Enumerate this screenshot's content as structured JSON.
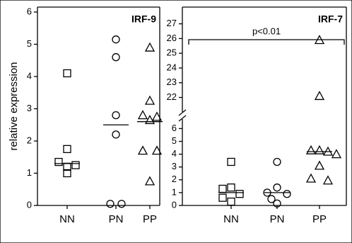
{
  "chart_data": [
    {
      "type": "dot",
      "title": "IRF-9",
      "ylabel": "relative expression",
      "categories": [
        "NN",
        "PN",
        "PP"
      ],
      "markers": [
        "square",
        "circle",
        "triangle"
      ],
      "values": [
        [
          4.1,
          1.75,
          1.35,
          1.25,
          1.2,
          1.0
        ],
        [
          5.15,
          4.6,
          2.8,
          2.2,
          0.05,
          0.05
        ],
        [
          4.9,
          3.25,
          2.8,
          2.75,
          2.65,
          1.7,
          1.7,
          0.75
        ]
      ],
      "medians": [
        1.3,
        2.5,
        2.6
      ],
      "ylim": [
        0,
        6
      ],
      "yticks": [
        0,
        1,
        2,
        3,
        4,
        5,
        6
      ]
    },
    {
      "type": "dot",
      "title": "IRF-7",
      "annotation": "p<0.01",
      "categories": [
        "NN",
        "PN",
        "PP"
      ],
      "markers": [
        "square",
        "circle",
        "triangle"
      ],
      "values": [
        [
          3.4,
          1.4,
          1.3,
          0.9,
          0.6,
          0.3
        ],
        [
          3.4,
          1.4,
          1.0,
          0.9,
          0.5,
          0.15
        ],
        [
          25.9,
          22.1,
          4.3,
          4.3,
          4.2,
          4.0,
          3.1,
          2.1,
          1.95
        ]
      ],
      "medians": [
        1.0,
        1.0,
        4.2
      ],
      "segments": [
        {
          "ylim": [
            0,
            6.3
          ],
          "yticks": [
            0,
            1,
            2,
            3,
            4,
            5,
            6
          ]
        },
        {
          "ylim": [
            21.4,
            27.8
          ],
          "yticks": [
            22,
            23,
            24,
            25,
            26,
            27
          ]
        }
      ]
    }
  ]
}
